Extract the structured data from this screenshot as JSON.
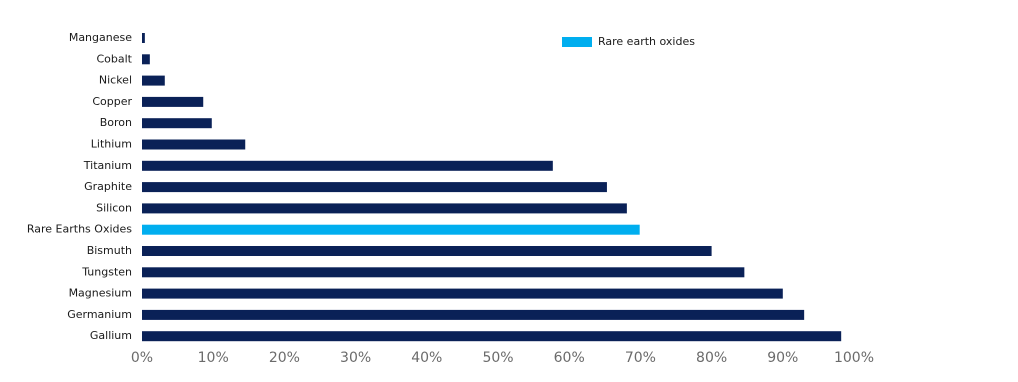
{
  "chart_data": {
    "type": "hbar",
    "categories": [
      "Manganese",
      "Cobalt",
      "Nickel",
      "Copper",
      "Boron",
      "Lithium",
      "Titanium",
      "Graphite",
      "Silicon",
      "Rare Earths Oxides",
      "Bismuth",
      "Tungsten",
      "Magnesium",
      "Germanium",
      "Gallium"
    ],
    "values": [
      0.4,
      1.1,
      3.2,
      8.6,
      9.8,
      14.5,
      57.7,
      65.3,
      68.1,
      69.9,
      80,
      84.6,
      90,
      93,
      98.2
    ],
    "colors": [
      "#0a2157",
      "#0a2157",
      "#0a2157",
      "#0a2157",
      "#0a2157",
      "#0a2157",
      "#0a2157",
      "#0a2157",
      "#0a2157",
      "#00aeef",
      "#0a2157",
      "#0a2157",
      "#0a2157",
      "#0a2157",
      "#0a2157"
    ],
    "legend": [
      {
        "label": "Rare earth oxides",
        "color": "#00aeef"
      }
    ],
    "xlim": [
      0,
      100
    ],
    "xticks": [
      {
        "value": 0,
        "label": "0%"
      },
      {
        "value": 10,
        "label": "10%"
      },
      {
        "value": 20,
        "label": "20%"
      },
      {
        "value": 30,
        "label": "30%"
      },
      {
        "value": 40,
        "label": "40%"
      },
      {
        "value": 50,
        "label": "50%"
      },
      {
        "value": 60,
        "label": "60%"
      },
      {
        "value": 70,
        "label": "70%"
      },
      {
        "value": 80,
        "label": "80%"
      },
      {
        "value": 90,
        "label": "90%"
      },
      {
        "value": 100,
        "label": "100%"
      }
    ]
  }
}
